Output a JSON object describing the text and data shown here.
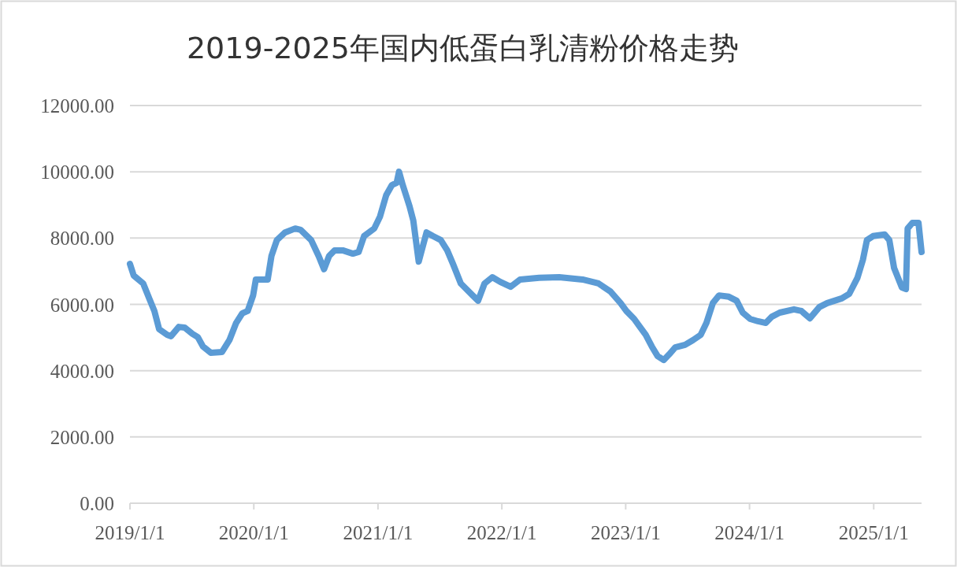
{
  "chart_data": {
    "type": "line",
    "title": "2019-2025年国内低蛋白乳清粉价格走势",
    "color": "#5b9bd5",
    "line_style": "solid",
    "marker": "none",
    "grid": "y",
    "legend": false,
    "x": [
      "2019-01-01",
      "2019-01-12",
      "2019-02-09",
      "2019-02-28",
      "2019-03-14",
      "2019-03-28",
      "2019-04-21",
      "2019-05-02",
      "2019-05-25",
      "2019-06-11",
      "2019-07-04",
      "2019-07-20",
      "2019-08-04",
      "2019-08-27",
      "2019-09-29",
      "2019-10-21",
      "2019-11-10",
      "2019-11-28",
      "2019-12-14",
      "2019-12-30",
      "2020-01-07",
      "2020-02-11",
      "2020-02-22",
      "2020-03-09",
      "2020-04-02",
      "2020-05-02",
      "2020-05-18",
      "2020-06-18",
      "2020-07-10",
      "2020-07-26",
      "2020-08-10",
      "2020-08-26",
      "2020-09-19",
      "2020-10-19",
      "2020-11-05",
      "2020-11-21",
      "2020-12-21",
      "2021-01-07",
      "2021-01-25",
      "2021-02-11",
      "2021-02-25",
      "2021-03-04",
      "2021-03-15",
      "2021-04-04",
      "2021-04-15",
      "2021-05-01",
      "2021-05-24",
      "2021-06-12",
      "2021-07-05",
      "2021-07-24",
      "2021-08-10",
      "2021-09-02",
      "2021-10-07",
      "2021-10-23",
      "2021-11-11",
      "2021-12-04",
      "2021-12-27",
      "2022-01-27",
      "2022-02-24",
      "2022-04-21",
      "2022-06-19",
      "2022-08-27",
      "2022-10-13",
      "2022-11-17",
      "2022-12-17",
      "2023-01-03",
      "2023-01-26",
      "2023-02-12",
      "2023-03-01",
      "2023-03-19",
      "2023-04-05",
      "2023-04-23",
      "2023-05-09",
      "2023-05-27",
      "2023-06-25",
      "2023-07-18",
      "2023-08-10",
      "2023-08-27",
      "2023-09-15",
      "2023-10-03",
      "2023-11-01",
      "2023-11-24",
      "2023-12-12",
      "2024-01-03",
      "2024-01-26",
      "2024-02-18",
      "2024-03-07",
      "2024-03-30",
      "2024-05-11",
      "2024-06-02",
      "2024-06-27",
      "2024-07-25",
      "2024-08-17",
      "2024-09-29",
      "2024-10-21",
      "2024-11-14",
      "2024-11-30",
      "2024-12-12",
      "2024-12-30",
      "2025-02-02",
      "2025-02-16",
      "2025-03-02",
      "2025-03-25",
      "2025-04-06",
      "2025-04-11",
      "2025-04-25",
      "2025-05-13",
      "2025-05-22"
    ],
    "values": [
      7220,
      6870,
      6630,
      6150,
      5800,
      5250,
      5080,
      5040,
      5320,
      5300,
      5110,
      5010,
      4730,
      4540,
      4560,
      4920,
      5440,
      5730,
      5800,
      6270,
      6750,
      6750,
      7460,
      7940,
      8170,
      8290,
      8250,
      7940,
      7460,
      7060,
      7460,
      7630,
      7630,
      7530,
      7580,
      8060,
      8290,
      8650,
      9290,
      9600,
      9670,
      10000,
      9600,
      8960,
      8530,
      7290,
      8170,
      8060,
      7940,
      7630,
      7220,
      6630,
      6270,
      6110,
      6630,
      6820,
      6680,
      6530,
      6750,
      6800,
      6820,
      6750,
      6630,
      6390,
      6040,
      5800,
      5560,
      5320,
      5080,
      4730,
      4440,
      4320,
      4490,
      4700,
      4780,
      4920,
      5080,
      5440,
      6040,
      6270,
      6230,
      6110,
      5750,
      5560,
      5490,
      5440,
      5630,
      5750,
      5850,
      5800,
      5580,
      5920,
      6040,
      6180,
      6320,
      6800,
      7340,
      7940,
      8060,
      8110,
      7940,
      7100,
      6510,
      6460,
      8290,
      8460,
      8460,
      7580
    ],
    "xlim": [
      "2019-01-01",
      "2025-05-22"
    ],
    "xticks": [
      {
        "value": "2019-01-01",
        "label": "2019/1/1"
      },
      {
        "value": "2020-01-01",
        "label": "2020/1/1"
      },
      {
        "value": "2021-01-01",
        "label": "2021/1/1"
      },
      {
        "value": "2022-01-01",
        "label": "2022/1/1"
      },
      {
        "value": "2023-01-01",
        "label": "2023/1/1"
      },
      {
        "value": "2024-01-01",
        "label": "2024/1/1"
      },
      {
        "value": "2025-01-01",
        "label": "2025/1/1"
      }
    ],
    "ylim": [
      0,
      12000
    ],
    "yticks": [
      {
        "value": 0,
        "label": "0.00"
      },
      {
        "value": 2000,
        "label": "2000.00"
      },
      {
        "value": 4000,
        "label": "4000.00"
      },
      {
        "value": 6000,
        "label": "6000.00"
      },
      {
        "value": 8000,
        "label": "8000.00"
      },
      {
        "value": 10000,
        "label": "10000.00"
      },
      {
        "value": 12000,
        "label": "12000.00"
      }
    ]
  }
}
